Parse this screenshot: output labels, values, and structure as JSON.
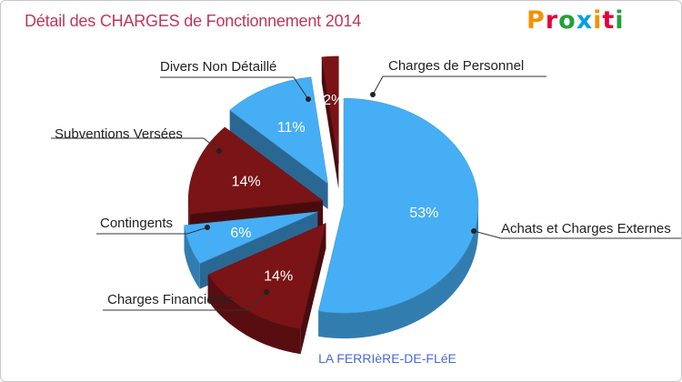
{
  "title": "Détail des CHARGES de Fonctionnement 2014",
  "brand": {
    "letters": [
      "P",
      "r",
      "o",
      "x",
      "i",
      "t",
      "i"
    ]
  },
  "footer": {
    "commune": "LA FERRIèRE-DE-FLéE"
  },
  "chart_data": {
    "type": "pie",
    "title": "Détail des CHARGES de Fonctionnement 2014",
    "subtitle": "LA FERRIèRE-DE-FLéE",
    "series": [
      {
        "name": "Achats et Charges Externes",
        "percent": 53,
        "label": "53%",
        "color": "#46aef5"
      },
      {
        "name": "Charges Financières",
        "percent": 14,
        "label": "14%",
        "color": "#7a1417"
      },
      {
        "name": "Contingents",
        "percent": 6,
        "label": "6%",
        "color": "#46aef5"
      },
      {
        "name": "Subventions Versées",
        "percent": 14,
        "label": "14%",
        "color": "#7a1417"
      },
      {
        "name": "Divers Non Détaillé",
        "percent": 11,
        "label": "11%",
        "color": "#46aef5"
      },
      {
        "name": "Charges de Personnel",
        "percent": 2,
        "label": "2%",
        "color": "#7a1417"
      }
    ]
  }
}
